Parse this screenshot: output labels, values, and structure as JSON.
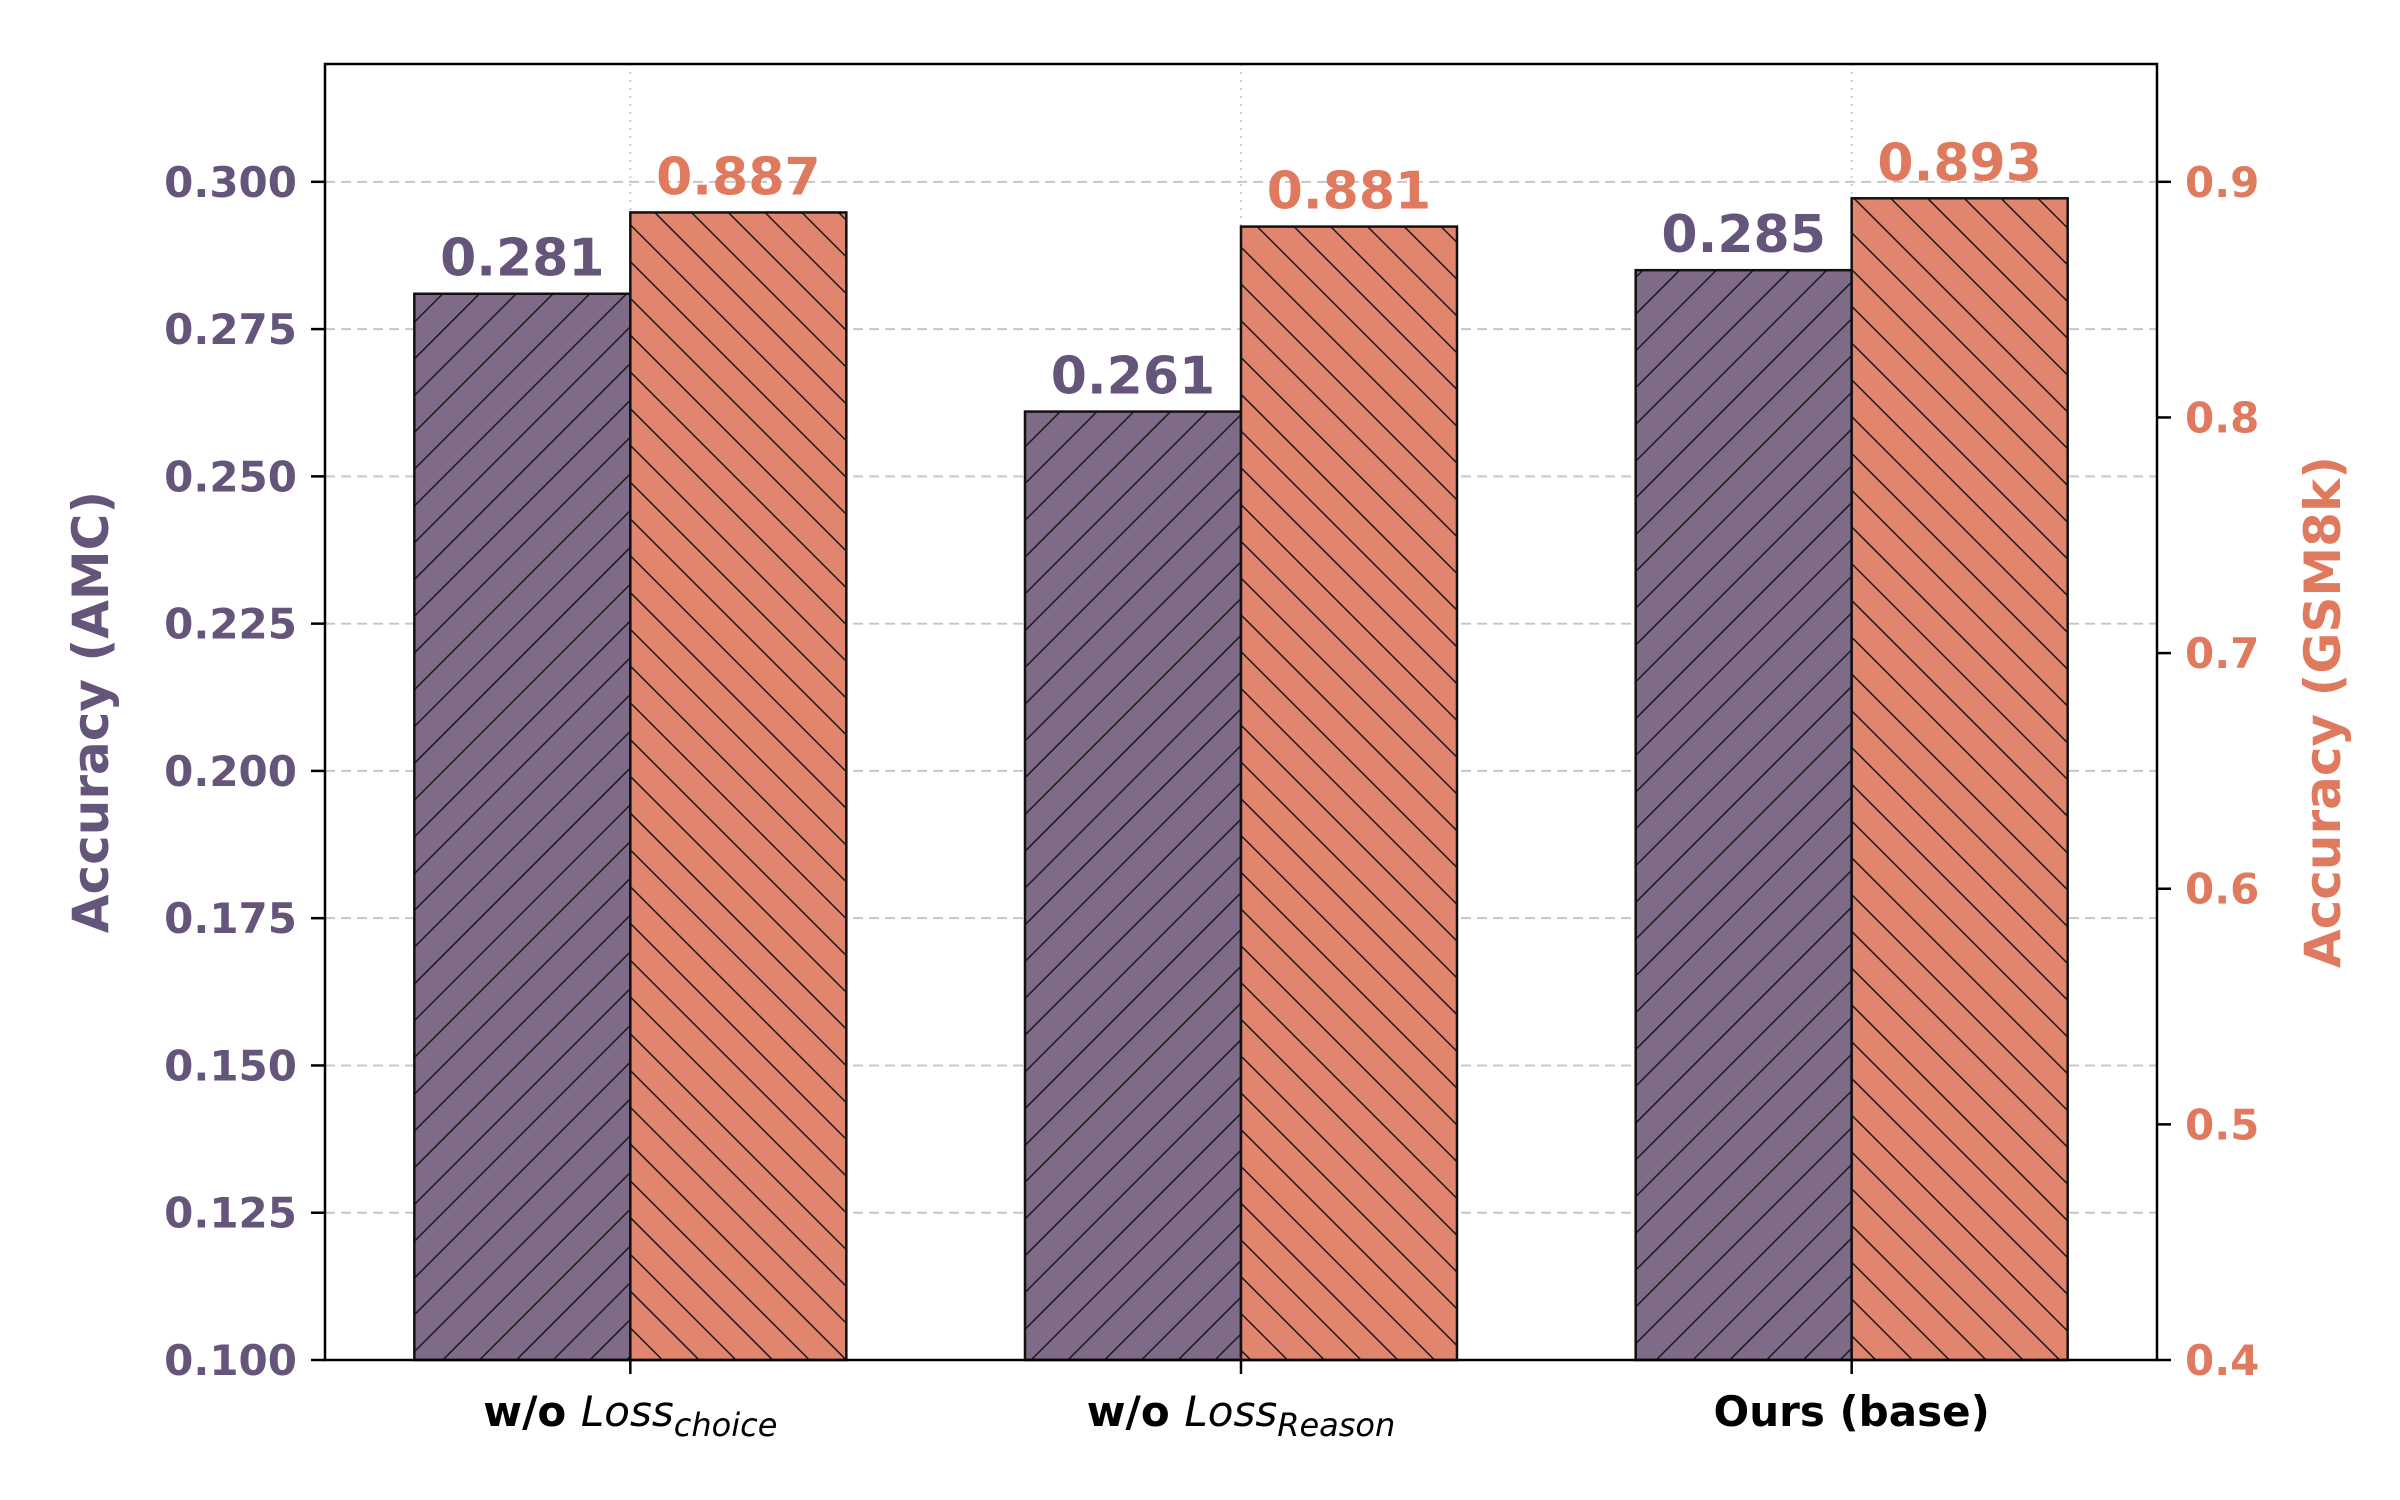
{
  "chart_data": {
    "type": "bar",
    "categories": [
      {
        "prefix": "w/o ",
        "base": "Loss",
        "sub": "choice"
      },
      {
        "prefix": "w/o ",
        "base": "Loss",
        "sub": "Reason"
      },
      {
        "prefix": "Ours (base)",
        "base": "",
        "sub": ""
      }
    ],
    "series": [
      {
        "axis": "left",
        "values": [
          0.281,
          0.261,
          0.285
        ],
        "labels": [
          "0.281",
          "0.261",
          "0.285"
        ],
        "color": "#7f6b88",
        "hatch": "backslash"
      },
      {
        "axis": "right",
        "values": [
          0.887,
          0.881,
          0.893
        ],
        "labels": [
          "0.887",
          "0.881",
          "0.893"
        ],
        "color": "#e2856e",
        "hatch": "slash"
      }
    ],
    "y_left": {
      "label": "Accuracy (AMC)",
      "min": 0.1,
      "max": 0.32,
      "ticks": [
        0.1,
        0.125,
        0.15,
        0.175,
        0.2,
        0.225,
        0.25,
        0.275,
        0.3
      ],
      "tick_labels": [
        "0.100",
        "0.125",
        "0.150",
        "0.175",
        "0.200",
        "0.225",
        "0.250",
        "0.275",
        "0.300"
      ],
      "color": "#65557a"
    },
    "y_right": {
      "label": "Accuracy (GSM8k)",
      "min": 0.4,
      "max": 0.95,
      "ticks": [
        0.4,
        0.5,
        0.6,
        0.7,
        0.8,
        0.9
      ],
      "tick_labels": [
        "0.4",
        "0.5",
        "0.6",
        "0.7",
        "0.8",
        "0.9"
      ],
      "color": "#e07a5f"
    },
    "grid": true,
    "grid_style": "dashed",
    "legend": "none"
  }
}
